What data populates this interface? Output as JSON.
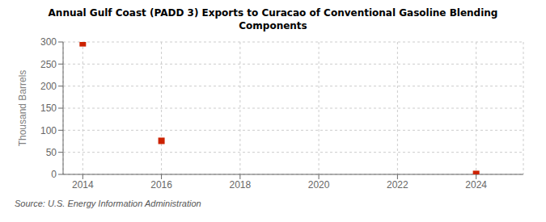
{
  "chart_data": {
    "type": "scatter",
    "title": "Annual Gulf Coast (PADD 3) Exports to Curacao of Conventional Gasoline Blending\nComponents",
    "ylabel": "Thousand Barrels",
    "annotation": "Source: U.S. Energy Information Administration",
    "x": [
      2014,
      2016,
      2024
    ],
    "values": [
      297,
      76,
      1
    ],
    "color": "#cc2200",
    "marker": "square",
    "xlim": [
      2013.5,
      2025.2
    ],
    "ylim": [
      0,
      300
    ],
    "xticks": [
      2014,
      2016,
      2018,
      2020,
      2022,
      2024
    ],
    "yticks": [
      0,
      50,
      100,
      150,
      200,
      250,
      300
    ],
    "grid": true
  }
}
